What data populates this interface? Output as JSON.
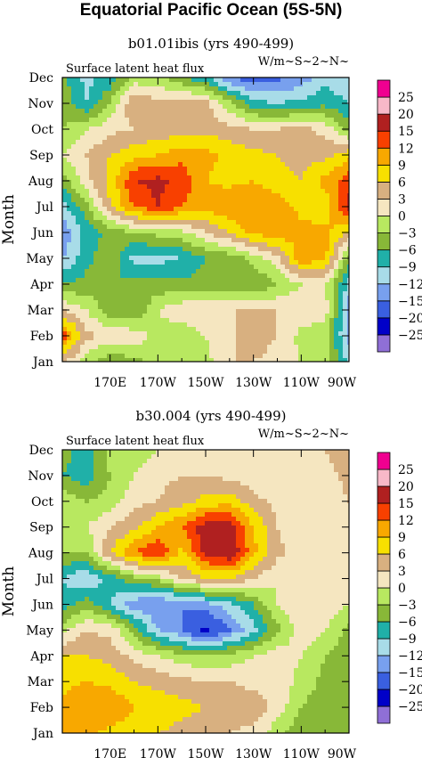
{
  "title": "Equatorial Pacific Ocean (5S-5N)",
  "chart_data": [
    {
      "type": "heatmap",
      "title": "b01.01ibis (yrs 490-499)",
      "left_label": "Surface latent heat flux",
      "right_label": "W/m~S~2~N~",
      "ylabel": "Month",
      "x_ticks": [
        "170E",
        "170W",
        "150W",
        "130W",
        "110W",
        "90W"
      ],
      "y_ticks": [
        "Jan",
        "Feb",
        "Mar",
        "Apr",
        "May",
        "Jun",
        "Jul",
        "Aug",
        "Sep",
        "Oct",
        "Nov",
        "Dec"
      ],
      "x_range": [
        "150E",
        "90W"
      ],
      "levels": [
        -25,
        -20,
        -15,
        -12,
        -9,
        -6,
        -3,
        0,
        3,
        6,
        9,
        12,
        15,
        20,
        25
      ],
      "colors": [
        "#8f6fd6",
        "#0000c8",
        "#3a5fe0",
        "#78a0ee",
        "#a8dce8",
        "#20b0a8",
        "#88b838",
        "#b8e860",
        "#f5e6c0",
        "#d8b080",
        "#f7e000",
        "#f8a800",
        "#f84000",
        "#b02020",
        "#f8b8c8",
        "#f00090"
      ],
      "x_lon": [
        150,
        160,
        170,
        180,
        190,
        200,
        210,
        220,
        230,
        240,
        250,
        260,
        270
      ],
      "grid": [
        [
          4,
          -2,
          -5,
          -4,
          -2,
          -2,
          -1,
          3,
          3,
          1,
          0,
          -1,
          -10
        ],
        [
          14,
          4,
          2,
          2,
          -1,
          -2,
          0,
          2,
          6,
          3,
          -1,
          -2,
          -13
        ],
        [
          3,
          0,
          -5,
          -6,
          0,
          2,
          3,
          3,
          3,
          3,
          2,
          2,
          -14
        ],
        [
          -6,
          -5,
          -6,
          -5,
          -5,
          -5,
          -5,
          -6,
          -6,
          -3,
          0,
          0,
          -10
        ],
        [
          -12,
          -7,
          -4,
          -10,
          -10,
          -9,
          -6,
          -5,
          -2,
          2,
          11,
          10,
          -5
        ],
        [
          -15,
          -8,
          -5,
          -3,
          -2,
          -1,
          3,
          6,
          10,
          11,
          10,
          10,
          6
        ],
        [
          -10,
          -4,
          6,
          12,
          15,
          12,
          10,
          12,
          12,
          11,
          8,
          7,
          16
        ],
        [
          -5,
          2,
          7,
          15,
          16,
          14,
          9,
          8,
          9,
          7,
          6,
          10,
          14
        ],
        [
          0,
          3,
          6,
          8,
          9,
          11,
          10,
          8,
          7,
          6,
          5,
          5,
          8
        ],
        [
          -3,
          0,
          2,
          3,
          4,
          4,
          5,
          4,
          3,
          3,
          4,
          2,
          -4
        ],
        [
          -4,
          -9,
          -3,
          6,
          4,
          5,
          4,
          -2,
          -8,
          -9,
          -8,
          -7,
          -9
        ],
        [
          -5,
          -10,
          -8,
          -2,
          -2,
          -6,
          -8,
          -15,
          -17,
          -16,
          -14,
          -10,
          -12
        ]
      ]
    },
    {
      "type": "heatmap",
      "title": "b30.004 (yrs 490-499)",
      "left_label": "Surface latent heat flux",
      "right_label": "W/m~S~2~N~",
      "ylabel": "Month",
      "x_ticks": [
        "170E",
        "170W",
        "150W",
        "130W",
        "110W",
        "90W"
      ],
      "y_ticks": [
        "Jan",
        "Feb",
        "Mar",
        "Apr",
        "May",
        "Jun",
        "Jul",
        "Aug",
        "Sep",
        "Oct",
        "Nov",
        "Dec"
      ],
      "x_range": [
        "150E",
        "90W"
      ],
      "levels": [
        -25,
        -20,
        -15,
        -12,
        -9,
        -6,
        -3,
        0,
        3,
        6,
        9,
        12,
        15,
        20,
        25
      ],
      "colors": [
        "#8f6fd6",
        "#0000c8",
        "#3a5fe0",
        "#78a0ee",
        "#a8dce8",
        "#20b0a8",
        "#88b838",
        "#b8e860",
        "#f5e6c0",
        "#d8b080",
        "#f7e000",
        "#f8a800",
        "#f84000",
        "#b02020",
        "#f8b8c8",
        "#f00090"
      ],
      "x_lon": [
        150,
        160,
        170,
        180,
        190,
        200,
        210,
        220,
        230,
        240,
        250,
        260,
        270
      ],
      "grid": [
        [
          9,
          10,
          8,
          7,
          6,
          5,
          4,
          3,
          2,
          -2,
          -5,
          -6,
          -6
        ],
        [
          10,
          12,
          12,
          9,
          8,
          7,
          6,
          5,
          5,
          2,
          -3,
          -5,
          -5
        ],
        [
          8,
          9,
          8,
          6,
          5,
          4,
          3,
          3,
          2,
          2,
          -1,
          -4,
          -5
        ],
        [
          6,
          6,
          5,
          2,
          0,
          -2,
          -3,
          -2,
          0,
          2,
          0,
          -3,
          -5
        ],
        [
          -1,
          3,
          2,
          -4,
          -12,
          -15,
          -21,
          -15,
          -10,
          -4,
          2,
          0,
          -4
        ],
        [
          -8,
          -4,
          -9,
          -14,
          -15,
          -15,
          -13,
          -10,
          -6,
          0,
          3,
          2,
          0
        ],
        [
          -9,
          -12,
          -8,
          -4,
          -2,
          3,
          6,
          6,
          3,
          0,
          1,
          2,
          2
        ],
        [
          -3,
          -3,
          6,
          12,
          15,
          8,
          16,
          18,
          10,
          4,
          1,
          1,
          2
        ],
        [
          -2,
          0,
          3,
          5,
          9,
          12,
          17,
          17,
          9,
          3,
          1,
          1,
          2
        ],
        [
          -1,
          -3,
          -2,
          2,
          3,
          5,
          7,
          8,
          4,
          2,
          1,
          1,
          3
        ],
        [
          -6,
          -8,
          -3,
          0,
          2,
          3,
          3,
          2,
          1,
          1,
          1,
          2,
          4
        ],
        [
          -5,
          -7,
          -2,
          -2,
          0,
          1,
          1,
          1,
          1,
          1,
          1,
          3,
          5
        ]
      ]
    }
  ]
}
